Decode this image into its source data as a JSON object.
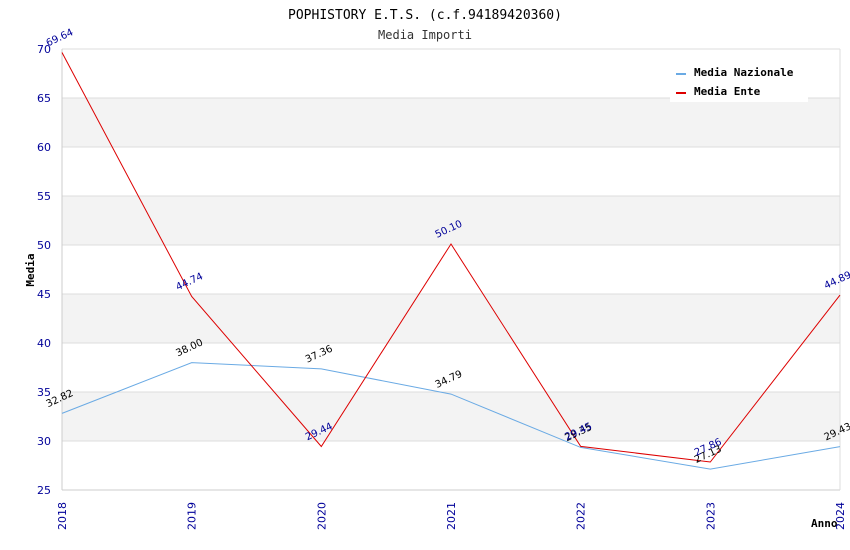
{
  "chart_data": {
    "type": "line",
    "title": "POPHISTORY E.T.S. (c.f.94189420360)",
    "subtitle": "Media Importi",
    "xlabel": "Anno",
    "ylabel": "Media",
    "ylim": [
      25,
      70
    ],
    "yticks": [
      "25",
      "30",
      "35",
      "40",
      "45",
      "50",
      "55",
      "60",
      "65",
      "70"
    ],
    "categories": [
      "2018",
      "2019",
      "2020",
      "2021",
      "2022",
      "2023",
      "2024"
    ],
    "legend_position": "top-right",
    "series": [
      {
        "name": "Media Nazionale",
        "color": "#6aaae4",
        "label_color": "#000000",
        "values": [
          32.82,
          38.0,
          37.36,
          34.79,
          29.35,
          27.13,
          29.43
        ],
        "labels": [
          "32.82",
          "38.00",
          "37.36",
          "34.79",
          "29.35",
          "27.13",
          "29.43"
        ]
      },
      {
        "name": "Media Ente",
        "color": "#dd0000",
        "label_color": "#000099",
        "values": [
          69.64,
          44.74,
          29.44,
          50.1,
          29.45,
          27.86,
          44.89
        ],
        "labels": [
          "69.64",
          "44.74",
          "29.44",
          "50.10",
          "29.45",
          "27.86",
          "44.89"
        ]
      }
    ]
  }
}
